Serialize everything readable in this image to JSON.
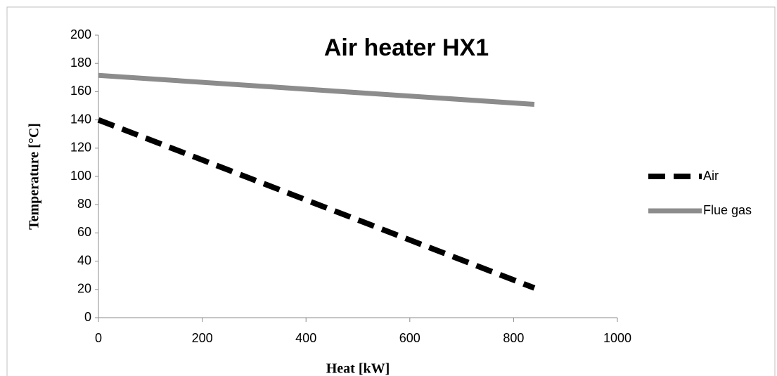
{
  "chart_data": {
    "type": "line",
    "title": "Air heater HX1",
    "x_label": "Heat [kW]",
    "y_label": "Temperature [°C]",
    "x": [
      0,
      840
    ],
    "series": [
      {
        "name": "Air",
        "color": "#000000",
        "dashed": true,
        "values": [
          140,
          21
        ]
      },
      {
        "name": "Flue gas",
        "color": "#8c8c8c",
        "dashed": false,
        "values": [
          171.5,
          151
        ]
      }
    ],
    "xlim": [
      0,
      1000
    ],
    "xticks": [
      0,
      200,
      400,
      600,
      800,
      1000
    ],
    "ylim": [
      0,
      200
    ],
    "yticks": [
      0,
      20,
      40,
      60,
      80,
      100,
      120,
      140,
      160,
      180,
      200
    ],
    "grid": false,
    "legend": "right"
  }
}
